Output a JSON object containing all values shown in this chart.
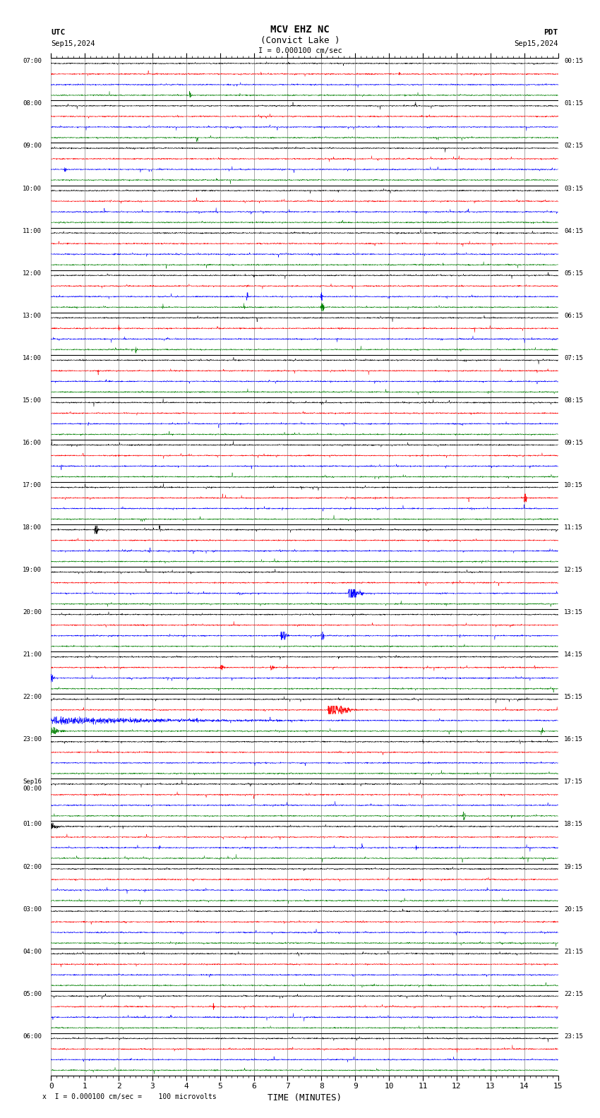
{
  "title_line1": "MCV EHZ NC",
  "title_line2": "(Convict Lake )",
  "scale_label": "I = 0.000100 cm/sec",
  "utc_label": "UTC",
  "utc_date": "Sep15,2024",
  "pdt_label": "PDT",
  "pdt_date": "Sep15,2024",
  "footer_label": "x  I = 0.000100 cm/sec =    100 microvolts",
  "xlabel": "TIME (MINUTES)",
  "left_times": [
    "07:00",
    "08:00",
    "09:00",
    "10:00",
    "11:00",
    "12:00",
    "13:00",
    "14:00",
    "15:00",
    "16:00",
    "17:00",
    "18:00",
    "19:00",
    "20:00",
    "21:00",
    "22:00",
    "23:00",
    "Sep16\n00:00",
    "01:00",
    "02:00",
    "03:00",
    "04:00",
    "05:00",
    "06:00"
  ],
  "right_times": [
    "00:15",
    "01:15",
    "02:15",
    "03:15",
    "04:15",
    "05:15",
    "06:15",
    "07:15",
    "08:15",
    "09:15",
    "10:15",
    "11:15",
    "12:15",
    "13:15",
    "14:15",
    "15:15",
    "16:15",
    "17:15",
    "18:15",
    "19:15",
    "20:15",
    "21:15",
    "22:15",
    "23:15"
  ],
  "n_rows": 24,
  "n_traces_per_row": 4,
  "colors": [
    "black",
    "red",
    "blue",
    "green"
  ],
  "bg_color": "white",
  "grid_color": "#888888",
  "xmin": 0,
  "xmax": 15,
  "seed": 42
}
